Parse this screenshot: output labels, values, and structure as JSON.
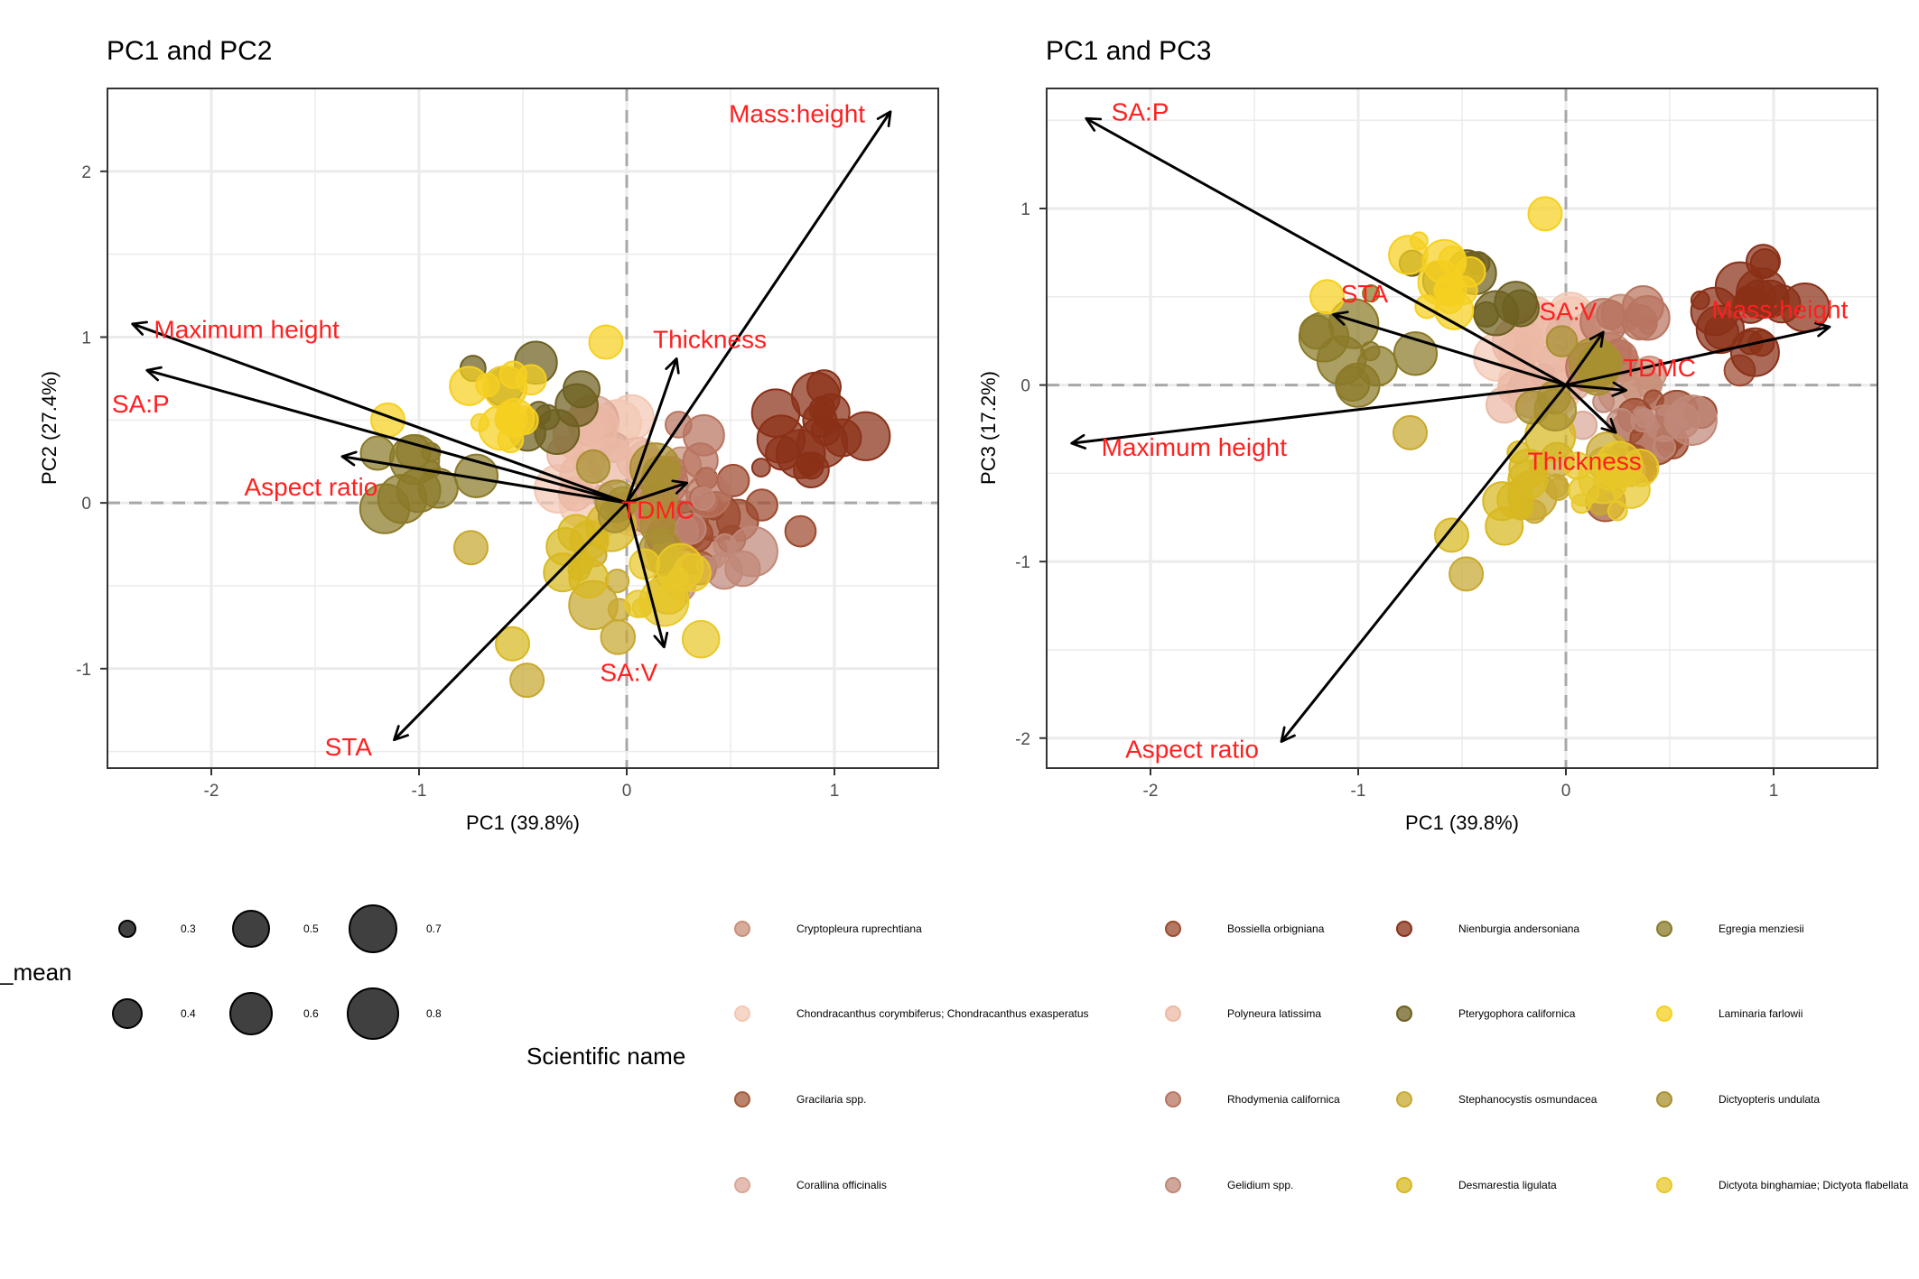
{
  "chart_data": [
    {
      "type": "scatter",
      "title": "PC1 and PC2",
      "xlabel": "PC1 (39.8%)",
      "ylabel": "PC2 (27.4%)",
      "xlim": [
        -2.5,
        1.5
      ],
      "ylim": [
        -1.6,
        2.5
      ],
      "xticks": [
        -2,
        -1,
        0,
        1
      ],
      "yticks": [
        -1,
        0,
        1,
        2
      ],
      "grid": true,
      "reference_lines": [
        "x=0",
        "y=0"
      ],
      "vectors": [
        {
          "label": "Mass:height",
          "x": 1.27,
          "y": 2.36,
          "lx": 0.82,
          "ly": 2.35
        },
        {
          "label": "Maximum height",
          "x": -2.38,
          "y": 1.08,
          "lx": -1.83,
          "ly": 1.05
        },
        {
          "label": "SA:P",
          "x": -2.31,
          "y": 0.8,
          "lx": -2.34,
          "ly": 0.6
        },
        {
          "label": "Thickness",
          "x": 0.24,
          "y": 0.87,
          "lx": 0.4,
          "ly": 0.99
        },
        {
          "label": "Aspect ratio",
          "x": -1.37,
          "y": 0.28,
          "lx": -1.52,
          "ly": 0.1
        },
        {
          "label": "TDMC",
          "x": 0.29,
          "y": 0.12,
          "lx": 0.15,
          "ly": -0.04
        },
        {
          "label": "SA:V",
          "x": 0.18,
          "y": -0.87,
          "lx": 0.01,
          "ly": -1.02
        },
        {
          "label": "STA",
          "x": -1.12,
          "y": -1.43,
          "lx": -1.34,
          "ly": -1.47
        }
      ]
    },
    {
      "type": "scatter",
      "title": "PC1 and PC3",
      "xlabel": "PC1 (39.8%)",
      "ylabel": "PC3 (17.2%)",
      "xlim": [
        -2.5,
        1.5
      ],
      "ylim": [
        -2.17,
        1.68
      ],
      "xticks": [
        -2,
        -1,
        0,
        1
      ],
      "yticks": [
        -2,
        -1,
        0,
        1
      ],
      "grid": true,
      "reference_lines": [
        "x=0",
        "y=0"
      ],
      "vectors": [
        {
          "label": "SA:P",
          "x": -2.31,
          "y": 1.51,
          "lx": -2.05,
          "ly": 1.55
        },
        {
          "label": "STA",
          "x": -1.12,
          "y": 0.4,
          "lx": -0.97,
          "ly": 0.52
        },
        {
          "label": "SA:V",
          "x": 0.18,
          "y": 0.3,
          "lx": 0.01,
          "ly": 0.42
        },
        {
          "label": "Mass:height",
          "x": 1.27,
          "y": 0.33,
          "lx": 1.03,
          "ly": 0.43
        },
        {
          "label": "TDMC",
          "x": 0.29,
          "y": -0.03,
          "lx": 0.45,
          "ly": 0.1
        },
        {
          "label": "Maximum height",
          "x": -2.38,
          "y": -0.33,
          "lx": -1.79,
          "ly": -0.35
        },
        {
          "label": "Thickness",
          "x": 0.24,
          "y": -0.27,
          "lx": 0.09,
          "ly": -0.43
        },
        {
          "label": "Aspect ratio",
          "x": -1.37,
          "y": -2.02,
          "lx": -1.8,
          "ly": -2.06
        }
      ]
    }
  ],
  "legend": {
    "size_title": "_mean",
    "size_values": [
      "0.3",
      "0.4",
      "0.5",
      "0.6",
      "0.7",
      "0.8"
    ],
    "color_title": "Scientific name",
    "species": [
      {
        "name": "Cryptopleura ruprechtiana",
        "color": "#c9907a"
      },
      {
        "name": "Chondracanthus corymbiferus; Chondracanthus exasperatus",
        "color": "#f2c8b4"
      },
      {
        "name": "Gracilaria spp.",
        "color": "#a35a3a"
      },
      {
        "name": "Corallina officinalis",
        "color": "#dba898"
      },
      {
        "name": "Bossiella orbigniana",
        "color": "#9c4a2e"
      },
      {
        "name": "Polyneura latissima",
        "color": "#ebb9a5"
      },
      {
        "name": "Rhodymenia californica",
        "color": "#b87560"
      },
      {
        "name": "Gelidium spp.",
        "color": "#c08878"
      },
      {
        "name": "Nienburgia andersoniana",
        "color": "#8a3018"
      },
      {
        "name": "Pterygophora californica",
        "color": "#6d6020"
      },
      {
        "name": "Stephanocystis osmundacea",
        "color": "#c8a830"
      },
      {
        "name": "Desmarestia ligulata",
        "color": "#d8b820"
      },
      {
        "name": "Egregia menziesii",
        "color": "#8a7a28"
      },
      {
        "name": "Laminaria farlowii",
        "color": "#f5d020"
      },
      {
        "name": "Dictyopteris undulata",
        "color": "#a89030"
      },
      {
        "name": "Dictyota binghamiae; Dictyota flabellata",
        "color": "#e8c828"
      }
    ]
  }
}
